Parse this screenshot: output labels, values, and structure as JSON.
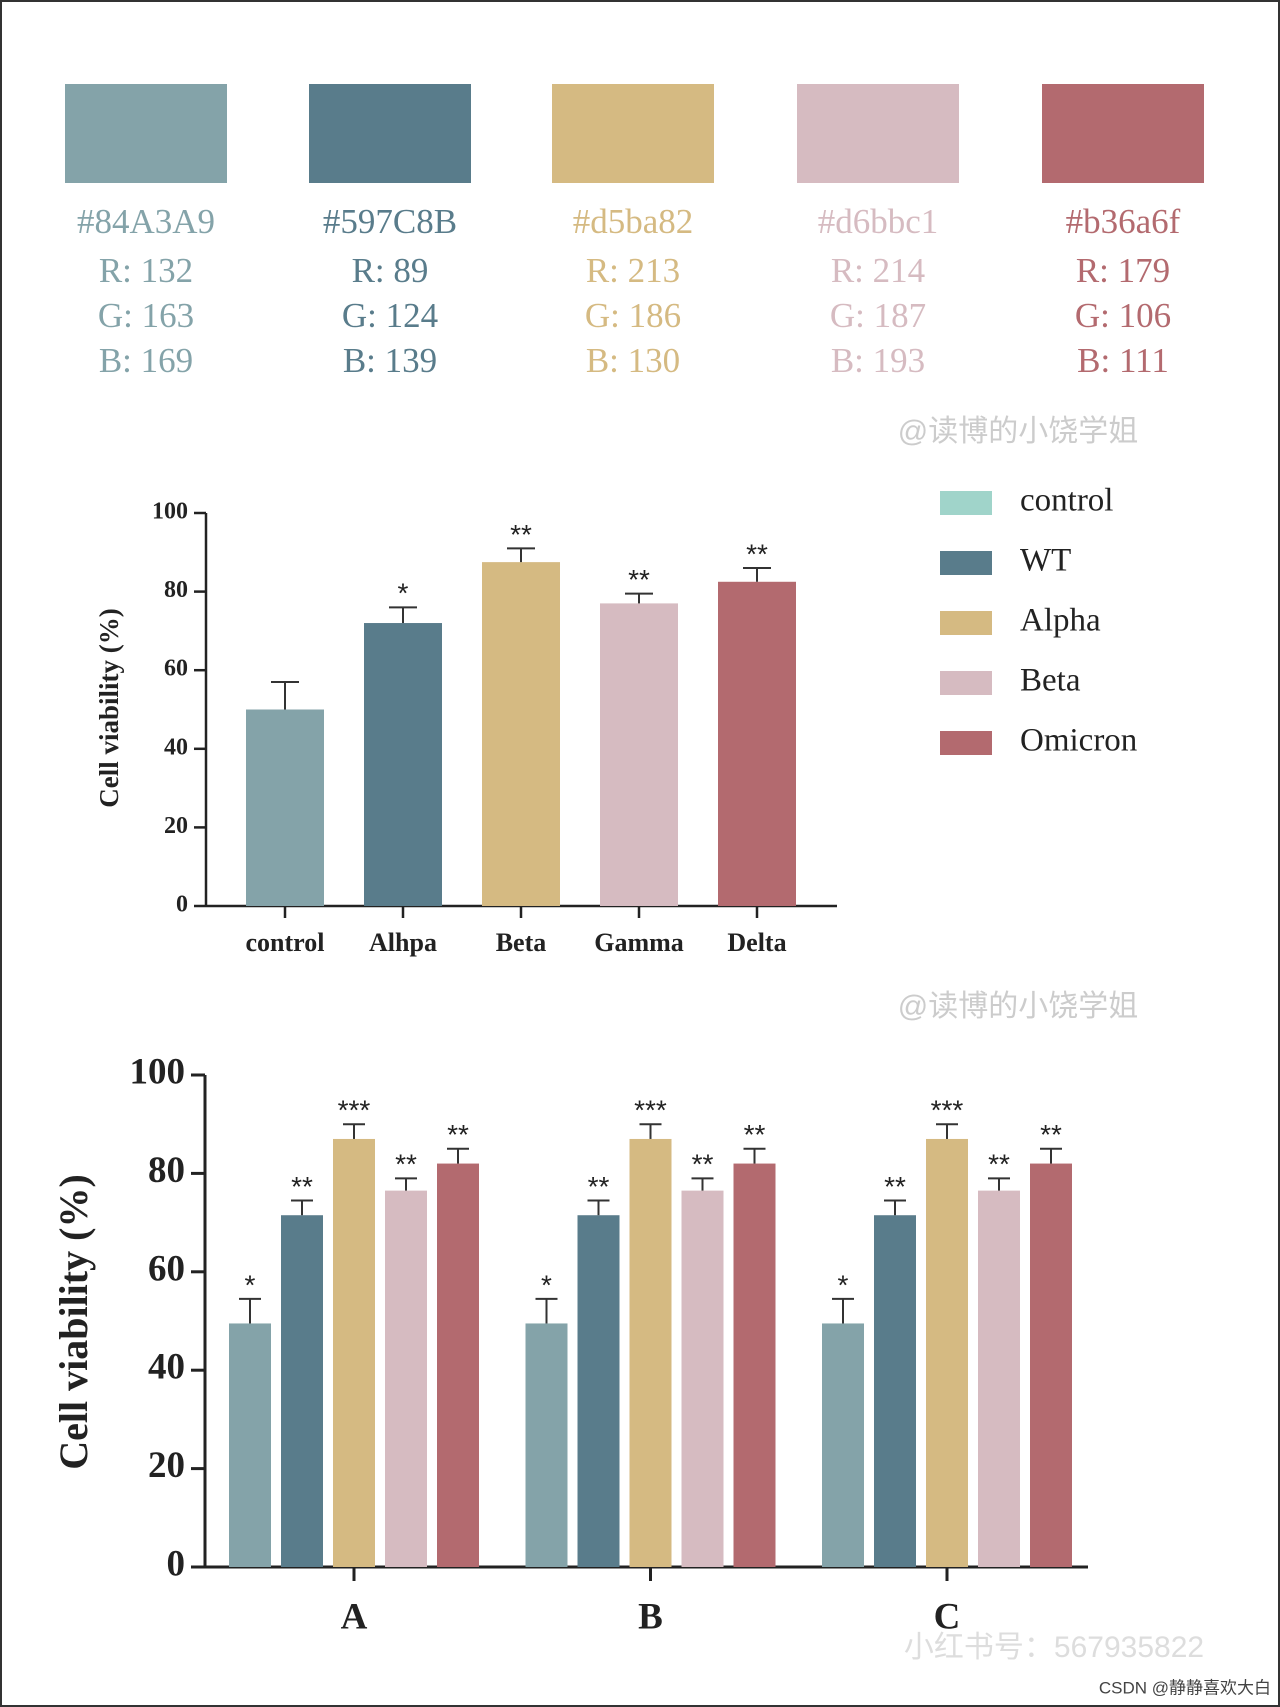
{
  "palette": [
    {
      "hex": "#84A3A9",
      "rgb": [
        "R: 132",
        "G: 163",
        "B: 169"
      ]
    },
    {
      "hex": "#597C8B",
      "rgb": [
        "R: 89",
        "G: 124",
        "B: 139"
      ]
    },
    {
      "hex": "#d5ba82",
      "rgb": [
        "R: 213",
        "G: 186",
        "B: 130"
      ]
    },
    {
      "hex": "#d6bbc1",
      "rgb": [
        "R: 214",
        "G: 187",
        "B: 193"
      ]
    },
    {
      "hex": "#b36a6f",
      "rgb": [
        "R: 179",
        "G: 106",
        "B: 111"
      ]
    }
  ],
  "watermarks": [
    "@读博的小饶学姐",
    "@读博的小饶学姐",
    "小红书号：567935822",
    "CSDN @静静喜欢大白"
  ],
  "chart_data": [
    {
      "type": "bar",
      "y_label": "Cell viability (%)",
      "categories": [
        "control",
        "Alhpa",
        "Beta",
        "Gamma",
        "Delta"
      ],
      "values": [
        50,
        72,
        87.5,
        77,
        82.5
      ],
      "errors": [
        7,
        4,
        3.5,
        2.5,
        3.5
      ],
      "annotations": [
        null,
        "*",
        "**",
        "**",
        "**"
      ],
      "colors": [
        "#84A3A9",
        "#597C8B",
        "#d5ba82",
        "#d6bbc1",
        "#b36a6f"
      ],
      "ylim": [
        0,
        100
      ],
      "yticks": [
        0,
        20,
        40,
        60,
        80,
        100
      ],
      "legend": [
        {
          "name": "control",
          "color": "#a0d4ca"
        },
        {
          "name": "WT",
          "color": "#597C8B"
        },
        {
          "name": "Alpha",
          "color": "#d5ba82"
        },
        {
          "name": "Beta",
          "color": "#d6bbc1"
        },
        {
          "name": "Omicron",
          "color": "#b36a6f"
        }
      ]
    },
    {
      "type": "grouped_bar",
      "y_label": "Cell viability (%)",
      "categories": [
        "A",
        "B",
        "C"
      ],
      "series": [
        {
          "color": "#84A3A9",
          "values": [
            49.5,
            49.5,
            49.5
          ],
          "errors": [
            5,
            5,
            5
          ],
          "annotations": [
            "*",
            "*",
            "*"
          ]
        },
        {
          "color": "#597C8B",
          "values": [
            71.5,
            71.5,
            71.5
          ],
          "errors": [
            3,
            3,
            3
          ],
          "annotations": [
            "**",
            "**",
            "**"
          ]
        },
        {
          "color": "#d5ba82",
          "values": [
            87,
            87,
            87
          ],
          "errors": [
            3,
            3,
            3
          ],
          "annotations": [
            "***",
            "***",
            "***"
          ]
        },
        {
          "color": "#d6bbc1",
          "values": [
            76.5,
            76.5,
            76.5
          ],
          "errors": [
            2.5,
            2.5,
            2.5
          ],
          "annotations": [
            "**",
            "**",
            "**"
          ]
        },
        {
          "color": "#b36a6f",
          "values": [
            82,
            82,
            82
          ],
          "errors": [
            3,
            3,
            3
          ],
          "annotations": [
            "**",
            "**",
            "**"
          ]
        }
      ],
      "ylim": [
        0,
        100
      ],
      "yticks": [
        0,
        20,
        40,
        60,
        80,
        100
      ]
    }
  ]
}
